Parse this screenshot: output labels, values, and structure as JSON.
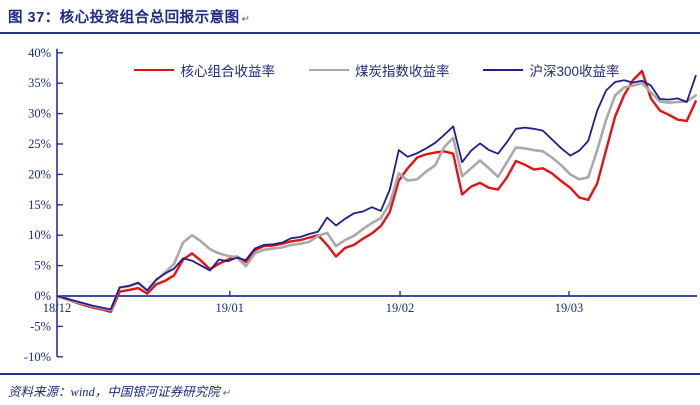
{
  "header": {
    "title": "图 37：核心投资组合总回报示意图",
    "paragraph_mark": "↵"
  },
  "footer": {
    "source_text": "资料来源：wind，中国银河证券研究院",
    "paragraph_mark": "↵"
  },
  "colors": {
    "axis": "#27309b",
    "text": "#1b2b84",
    "red": "#e41212",
    "gray": "#a9a9a9",
    "navy": "#1f1f8e"
  },
  "chart_data": {
    "type": "line",
    "title": "核心投资组合总回报示意图",
    "xlabel": "",
    "ylabel": "",
    "ylim": [
      -10,
      40
    ],
    "ytick_step": 5,
    "y_tick_labels": [
      "40%",
      "35%",
      "30%",
      "25%",
      "20%",
      "15%",
      "10%",
      "5%",
      "0%",
      "-5%",
      "-10%"
    ],
    "x_tick_labels": [
      "18/12",
      "19/01",
      "19/02",
      "19/03"
    ],
    "x_tick_positions": [
      0,
      0.27,
      0.536,
      0.8
    ],
    "grid": false,
    "legend_position": "top-center",
    "x": [
      0,
      0.014,
      0.028,
      0.042,
      0.056,
      0.07,
      0.084,
      0.098,
      0.113,
      0.127,
      0.141,
      0.155,
      0.169,
      0.183,
      0.197,
      0.211,
      0.225,
      0.239,
      0.253,
      0.267,
      0.281,
      0.295,
      0.309,
      0.323,
      0.338,
      0.352,
      0.366,
      0.38,
      0.394,
      0.408,
      0.422,
      0.436,
      0.45,
      0.464,
      0.478,
      0.492,
      0.506,
      0.52,
      0.534,
      0.548,
      0.563,
      0.577,
      0.591,
      0.605,
      0.619,
      0.633,
      0.647,
      0.661,
      0.675,
      0.689,
      0.703,
      0.717,
      0.731,
      0.745,
      0.759,
      0.773,
      0.788,
      0.802,
      0.816,
      0.83,
      0.844,
      0.858,
      0.872,
      0.886,
      0.9,
      0.914,
      0.928,
      0.942,
      0.956,
      0.97,
      0.984,
      0.998
    ],
    "series": [
      {
        "name": "核心组合收益率",
        "color": "#e41212",
        "width": 2.4,
        "values": [
          0,
          -0.5,
          -1.0,
          -1.5,
          -1.9,
          -2.2,
          -2.6,
          0.7,
          1.0,
          1.3,
          0.4,
          1.9,
          2.5,
          3.4,
          6.0,
          7.0,
          5.8,
          4.4,
          5.3,
          6.0,
          6.5,
          5.6,
          7.5,
          8.2,
          8.3,
          8.6,
          9.0,
          9.2,
          9.6,
          10.0,
          8.4,
          6.5,
          7.9,
          8.4,
          9.4,
          10.3,
          11.5,
          13.8,
          19.0,
          21.0,
          22.8,
          23.3,
          23.6,
          23.8,
          23.4,
          16.7,
          18.0,
          18.6,
          17.8,
          17.5,
          19.5,
          22.2,
          21.6,
          20.8,
          21.0,
          20.2,
          18.9,
          17.8,
          16.2,
          15.8,
          18.5,
          24.0,
          29.5,
          33.0,
          35.5,
          37.0,
          32.5,
          30.5,
          29.8,
          29.0,
          28.8,
          32.0
        ]
      },
      {
        "name": "煤炭指数收益率",
        "color": "#a9a9a9",
        "width": 2.6,
        "values": [
          0,
          -0.4,
          -0.9,
          -1.3,
          -1.7,
          -2.0,
          -2.3,
          1.4,
          1.6,
          2.1,
          0.9,
          2.6,
          3.9,
          5.3,
          8.8,
          10.0,
          9.0,
          7.7,
          7.0,
          6.6,
          6.4,
          4.9,
          7.0,
          7.6,
          7.8,
          8.0,
          8.4,
          8.6,
          8.9,
          9.9,
          10.4,
          8.2,
          9.2,
          9.9,
          11.0,
          12.0,
          12.8,
          15.2,
          20.2,
          19.0,
          19.2,
          20.5,
          21.5,
          24.5,
          26.0,
          19.7,
          21.0,
          22.3,
          21.0,
          19.6,
          22.0,
          24.4,
          24.3,
          24.0,
          23.8,
          22.8,
          21.5,
          20.0,
          19.2,
          19.5,
          24.0,
          29.0,
          33.0,
          34.3,
          34.6,
          35.0,
          33.5,
          32.0,
          31.8,
          31.9,
          32.0,
          33.0
        ]
      },
      {
        "name": "沪深300收益率",
        "color": "#1f1f8e",
        "width": 1.8,
        "values": [
          0,
          -0.4,
          -0.8,
          -1.2,
          -1.6,
          -1.9,
          -2.2,
          1.4,
          1.7,
          2.2,
          0.9,
          2.7,
          3.7,
          4.5,
          6.2,
          5.8,
          5.0,
          4.2,
          6.0,
          5.7,
          6.3,
          5.9,
          7.8,
          8.4,
          8.5,
          8.8,
          9.5,
          9.7,
          10.2,
          10.6,
          12.9,
          11.6,
          12.7,
          13.6,
          13.9,
          14.6,
          14.0,
          17.5,
          24.0,
          22.9,
          23.5,
          24.3,
          25.2,
          26.5,
          27.9,
          22.0,
          23.9,
          25.1,
          24.0,
          23.4,
          25.3,
          27.5,
          27.7,
          27.5,
          27.2,
          25.8,
          24.3,
          23.1,
          23.9,
          25.5,
          30.5,
          33.8,
          35.2,
          35.5,
          35.1,
          35.4,
          34.6,
          32.4,
          32.3,
          32.5,
          31.9,
          36.2
        ]
      }
    ]
  }
}
